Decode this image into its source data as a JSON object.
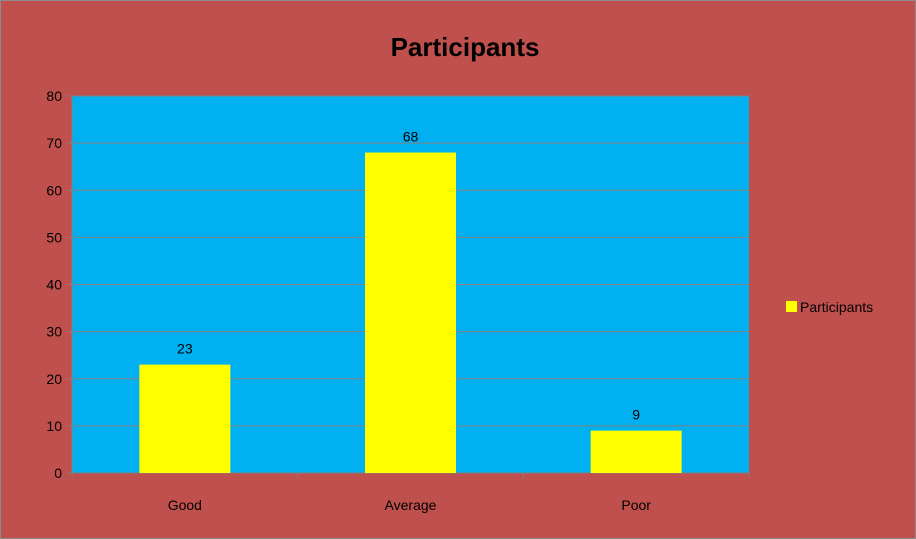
{
  "chart_data": {
    "type": "bar",
    "title": "Participants",
    "categories": [
      "Good",
      "Average",
      "Poor"
    ],
    "series": [
      {
        "name": "Participants",
        "values": [
          23,
          68,
          9
        ],
        "color": "#ffff00"
      }
    ],
    "ylim": [
      0,
      80
    ],
    "yticks": [
      0,
      10,
      20,
      30,
      40,
      50,
      60,
      70,
      80
    ],
    "grid": true,
    "legend_position": "right",
    "data_labels": true
  },
  "colors": {
    "chart_background": "#c0504d",
    "plot_background": "#00b0f0",
    "bar_fill": "#ffff00",
    "gridline": "#808080",
    "border": "#8c8c8c"
  }
}
